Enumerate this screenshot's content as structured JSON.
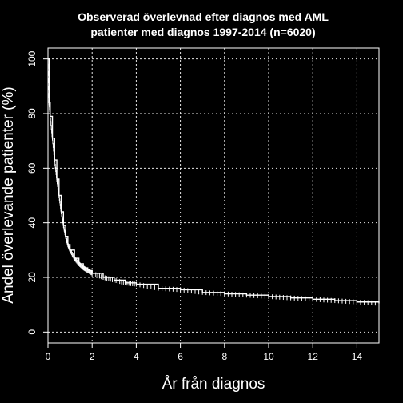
{
  "chart_data": {
    "type": "line",
    "title": "Observerad överlevnad efter diagnos med AML",
    "subtitle": "patienter med diagnos 1997-2014 (n=6020)",
    "xlabel": "År från diagnos",
    "ylabel": "Andel överlevande patienter (%)",
    "xlim": [
      0,
      15
    ],
    "ylim": [
      -4,
      104
    ],
    "x_ticks": [
      0,
      2,
      4,
      6,
      8,
      10,
      12,
      14
    ],
    "y_ticks": [
      0,
      20,
      40,
      60,
      80,
      100
    ],
    "x_tick_labels": [
      "0",
      "2",
      "4",
      "6",
      "8",
      "10",
      "12",
      "14"
    ],
    "y_tick_labels": [
      "0",
      "20",
      "40",
      "60",
      "80",
      "100"
    ],
    "grid": true,
    "series": [
      {
        "x": [
          0,
          0.05,
          0.1,
          0.2,
          0.3,
          0.4,
          0.5,
          0.6,
          0.7,
          0.8,
          0.9,
          1.0,
          1.2,
          1.4,
          1.6,
          1.8,
          2.0,
          2.5,
          3.0,
          3.5,
          4.0,
          5.0,
          6.0,
          7.0,
          8.0,
          9.0,
          10.0,
          11.0,
          12.0,
          13.0,
          14.0,
          15.0
        ],
        "y": [
          100,
          84,
          79,
          71,
          63,
          56,
          50,
          44,
          39,
          35,
          32,
          30,
          27,
          25,
          23.5,
          22.5,
          21.5,
          20,
          19,
          18,
          17.5,
          16,
          15.5,
          14.5,
          14,
          13.5,
          13,
          12.5,
          12,
          11.5,
          11,
          10.5
        ]
      }
    ]
  }
}
